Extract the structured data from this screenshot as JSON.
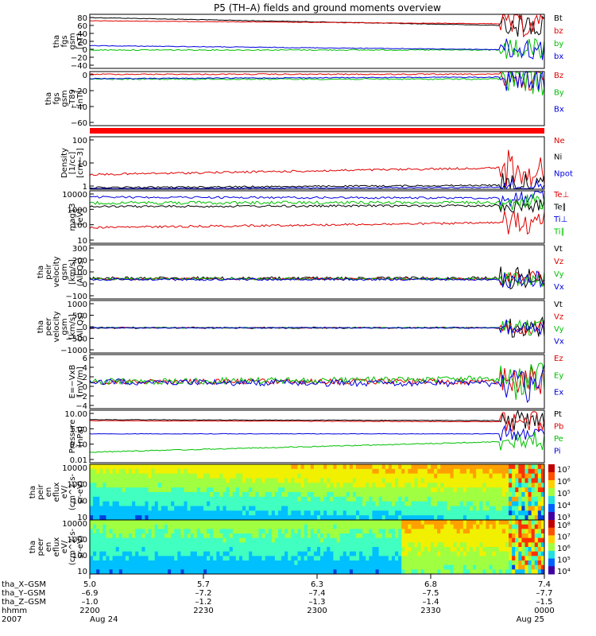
{
  "chart_data": {
    "type": "line",
    "title": "P5 (TH–A) fields and ground moments overview",
    "time_axis": {
      "tick_labels": [
        "5.0",
        "5.7",
        "6.3",
        "6.8",
        "7.4"
      ],
      "rows": [
        {
          "name": "tha_X–GSM",
          "values": [
            "5.0",
            "5.7",
            "6.3",
            "6.8",
            "7.4"
          ]
        },
        {
          "name": "tha_Y–GSM",
          "values": [
            "–6.9",
            "–7.2",
            "–7.4",
            "–7.5",
            "–7.7"
          ]
        },
        {
          "name": "tha_Z–GSM",
          "values": [
            "–1.0",
            "–1.2",
            "–1.3",
            "–1.4",
            "–1.5"
          ]
        },
        {
          "name": "hhmm",
          "values": [
            "2200",
            "2230",
            "2300",
            "2330",
            "0000"
          ]
        },
        {
          "name": "2007",
          "values": [
            "Aug 24",
            "",
            "",
            "",
            "Aug 25"
          ]
        }
      ]
    },
    "panels": [
      {
        "id": "fgs",
        "ylabel": [
          "tha",
          "fgs",
          "gsm",
          "[nT]"
        ],
        "yticks": [
          "80",
          "60",
          "40",
          "20",
          "0",
          "−20",
          "−40"
        ],
        "series": [
          {
            "name": "Bt",
            "color": "#000000"
          },
          {
            "name": "bz",
            "color": "#e00000"
          },
          {
            "name": "by",
            "color": "#00c000"
          },
          {
            "name": "bx",
            "color": "#0000e0"
          }
        ]
      },
      {
        "id": "fgs_dt",
        "ylabel": [
          "tha",
          "fgs",
          "gsm",
          "–T89",
          "[nT]"
        ],
        "yticks": [
          "0",
          "−20",
          "−40",
          "−60"
        ],
        "series": [
          {
            "name": "Bz",
            "color": "#e00000"
          },
          {
            "name": "By",
            "color": "#00c000"
          },
          {
            "name": "Bx",
            "color": "#0000e0"
          }
        ]
      },
      {
        "id": "density",
        "ylabel": [
          "Density",
          "[1/cc]",
          "[cm−3]"
        ],
        "yticks": [
          "100",
          "10",
          "1"
        ],
        "series": [
          {
            "name": "Ne",
            "color": "#e00000"
          },
          {
            "name": "Ni",
            "color": "#000000"
          },
          {
            "name": "Npot",
            "color": "#0000e0"
          }
        ]
      },
      {
        "id": "temp",
        "ylabel": [
          "mag13",
          "[eV]"
        ],
        "yticks": [
          "10000",
          "1000",
          "100",
          "10"
        ],
        "series": [
          {
            "name": "Te⊥",
            "color": "#e00000"
          },
          {
            "name": "Te∥",
            "color": "#000000"
          },
          {
            "name": "Ti⊥",
            "color": "#0000e0"
          },
          {
            "name": "Ti∥",
            "color": "#00c000"
          }
        ]
      },
      {
        "id": "vel_peir",
        "ylabel": [
          "tha",
          "peir",
          "velocity",
          "gsm",
          "[km/s]",
          "(All Qs)"
        ],
        "yticks": [
          "300",
          "200",
          "100",
          "0",
          "−100"
        ],
        "series": [
          {
            "name": "Vt",
            "color": "#000000"
          },
          {
            "name": "Vz",
            "color": "#e00000"
          },
          {
            "name": "Vy",
            "color": "#00c000"
          },
          {
            "name": "Vx",
            "color": "#0000e0"
          }
        ]
      },
      {
        "id": "vel_peer",
        "ylabel": [
          "tha",
          "peer",
          "velocity",
          "gsm",
          "[km/s]",
          "(All Qs)"
        ],
        "yticks": [
          "1000",
          "500",
          "0",
          "−500",
          "−1000"
        ],
        "series": [
          {
            "name": "Vt",
            "color": "#000000"
          },
          {
            "name": "Vz",
            "color": "#e00000"
          },
          {
            "name": "Vy",
            "color": "#00c000"
          },
          {
            "name": "Vx",
            "color": "#0000e0"
          }
        ]
      },
      {
        "id": "efield",
        "ylabel": [
          "E=−VxB",
          "[mV/m]"
        ],
        "yticks": [
          "6",
          "4",
          "2",
          "0",
          "−2",
          "−4"
        ],
        "series": [
          {
            "name": "Ez",
            "color": "#e00000"
          },
          {
            "name": "Ey",
            "color": "#00c000"
          },
          {
            "name": "Ex",
            "color": "#0000e0"
          }
        ]
      },
      {
        "id": "pressure",
        "ylabel": [
          "Pressure",
          "[nPa]"
        ],
        "yticks": [
          "10.00",
          "1.00",
          "0.10",
          "0.01"
        ],
        "series": [
          {
            "name": "Pt",
            "color": "#000000"
          },
          {
            "name": "Pb",
            "color": "#e00000"
          },
          {
            "name": "Pe",
            "color": "#00c000"
          },
          {
            "name": "Pi",
            "color": "#0000e0"
          }
        ]
      },
      {
        "id": "spec_peir",
        "ylabel": [
          "tha",
          "peir",
          "en",
          "eflux",
          "eV/",
          "(cm^2-s-",
          "sr-eV)"
        ],
        "yticks": [
          "10000",
          "1000",
          "100",
          "10"
        ],
        "colorbar": [
          "10⁷",
          "10⁶",
          "10⁵",
          "10⁴",
          "10³"
        ]
      },
      {
        "id": "spec_peer",
        "ylabel": [
          "tha",
          "peer",
          "en",
          "eflux",
          "eV/",
          "(cm^2-s-",
          "sr-eV)"
        ],
        "yticks": [
          "10000",
          "1000",
          "100",
          "10"
        ],
        "colorbar": [
          "10⁸",
          "10⁷",
          "10⁶",
          "10⁵",
          "10⁴"
        ]
      }
    ]
  }
}
